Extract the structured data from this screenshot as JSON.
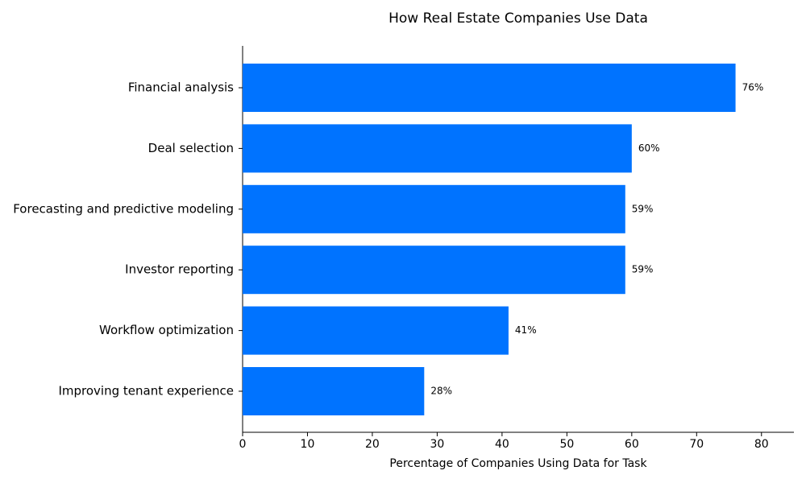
{
  "chart_data": {
    "type": "barh",
    "title": "How Real Estate Companies Use Data",
    "xlabel": "Percentage of Companies Using Data for Task",
    "categories": [
      "Financial analysis",
      "Deal selection",
      "Forecasting and predictive modeling",
      "Investor reporting",
      "Workflow optimization",
      "Improving tenant experience"
    ],
    "values": [
      76,
      60,
      59,
      59,
      41,
      28
    ],
    "value_labels": [
      "76%",
      "60%",
      "59%",
      "59%",
      "41%",
      "28%"
    ],
    "color": "#0073ff",
    "xlim": [
      0,
      85
    ],
    "xticks": [
      0,
      10,
      20,
      30,
      40,
      50,
      60,
      70,
      80
    ],
    "grid": false
  }
}
